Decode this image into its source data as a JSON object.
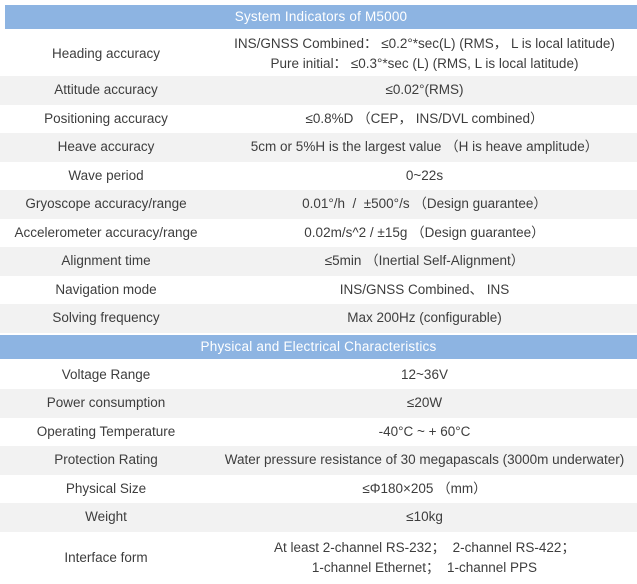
{
  "colors": {
    "header_bg": "#8DB4E2",
    "header_text": "#FFFFFF",
    "alt_bg": "#F2F2F2",
    "row_bg": "#FFFFFF",
    "text": "#3D3D3D"
  },
  "sections": [
    {
      "title": "System Indicators of M5000",
      "rows": [
        {
          "label": "Heading accuracy",
          "lines": [
            "INS/GNSS Combined： ≤0.2°*sec(L) (RMS， L is local latitude)",
            "Pure initial： ≤0.3°*sec (L) (RMS, L is local latitude)"
          ]
        },
        {
          "label": "Attitude accuracy",
          "lines": [
            "≤0.02°(RMS)"
          ]
        },
        {
          "label": "Positioning accuracy",
          "lines": [
            "≤0.8%D （CEP， INS/DVL combined）"
          ]
        },
        {
          "label": "Heave accuracy",
          "lines": [
            "5cm or 5%H is the largest value （H is heave amplitude）"
          ]
        },
        {
          "label": "Wave period",
          "lines": [
            "0~22s"
          ]
        },
        {
          "label": "Gryoscope accuracy/range",
          "lines": [
            "0.01°/h  /  ±500°/s （Design guarantee）"
          ]
        },
        {
          "label": "Accelerometer accuracy/range",
          "lines": [
            "0.02m/s^2 / ±15g （Design guarantee）"
          ]
        },
        {
          "label": "Alignment time",
          "lines": [
            "≤5min （Inertial Self-Alignment）"
          ]
        },
        {
          "label": "Navigation mode",
          "lines": [
            "INS/GNSS Combined、 INS"
          ]
        },
        {
          "label": "Solving frequency",
          "lines": [
            "Max 200Hz (configurable)"
          ]
        }
      ]
    },
    {
      "title": "Physical and Electrical Characteristics",
      "rows": [
        {
          "label": "Voltage Range",
          "lines": [
            "12~36V"
          ]
        },
        {
          "label": "Power consumption",
          "lines": [
            "≤20W"
          ]
        },
        {
          "label": "Operating Temperature",
          "lines": [
            "-40°C ~ + 60°C"
          ]
        },
        {
          "label": "Protection Rating",
          "lines": [
            "Water pressure resistance of 30 megapascals (3000m underwater)"
          ]
        },
        {
          "label": "Physical Size",
          "lines": [
            "≤Φ180×205 （mm）"
          ]
        },
        {
          "label": "Weight",
          "lines": [
            "≤10kg"
          ]
        },
        {
          "label": "Interface form",
          "lines": [
            "At least 2-channel RS-232；  2-channel RS-422；",
            "1-channel Ethernet；  1-channel PPS"
          ]
        }
      ]
    }
  ]
}
